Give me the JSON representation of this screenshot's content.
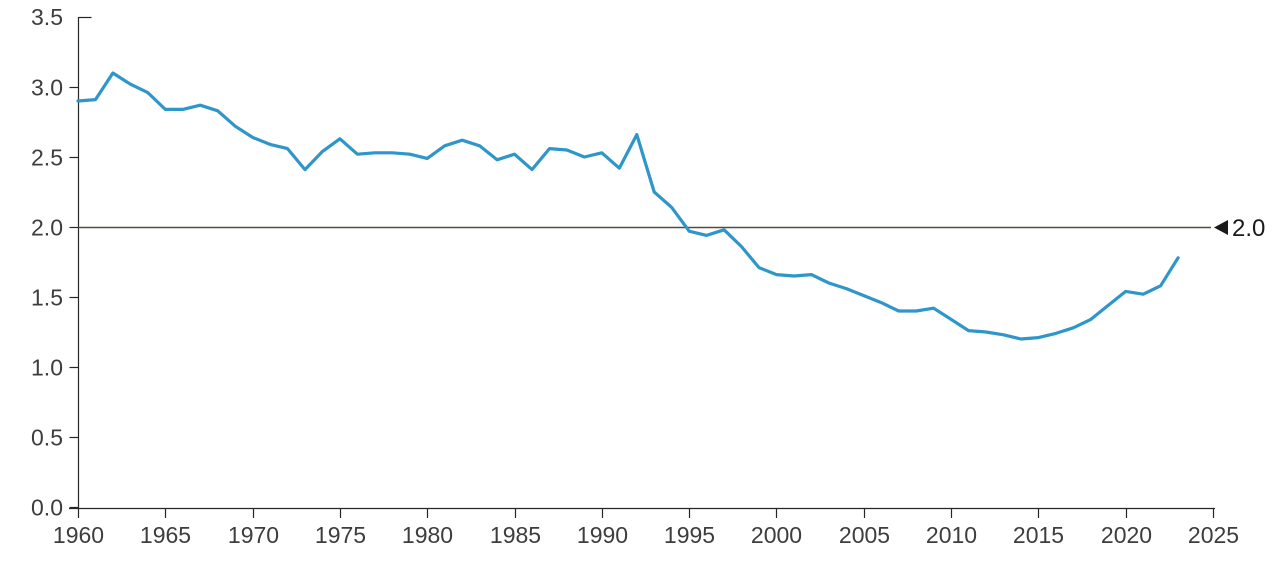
{
  "chart_data": {
    "type": "line",
    "title": "",
    "xlabel": "",
    "ylabel": "",
    "xlim": [
      1960,
      2025
    ],
    "ylim": [
      0.0,
      3.5
    ],
    "grid": "off",
    "legend": "none",
    "x_tick_labels": [
      "1960",
      "1965",
      "1970",
      "1975",
      "1980",
      "1985",
      "1990",
      "1995",
      "2000",
      "2005",
      "2010",
      "2015",
      "2020",
      "2025"
    ],
    "x_tick_values": [
      1960,
      1965,
      1970,
      1975,
      1980,
      1985,
      1990,
      1995,
      2000,
      2005,
      2010,
      2015,
      2020,
      2025
    ],
    "y_tick_labels": [
      "0.0",
      "0.5",
      "1.0",
      "1.5",
      "2.0",
      "2.5",
      "3.0",
      "3.5"
    ],
    "y_tick_values": [
      0.0,
      0.5,
      1.0,
      1.5,
      2.0,
      2.5,
      3.0,
      3.5
    ],
    "x": [
      1960,
      1961,
      1962,
      1963,
      1964,
      1965,
      1966,
      1967,
      1968,
      1969,
      1970,
      1971,
      1972,
      1973,
      1974,
      1975,
      1976,
      1977,
      1978,
      1979,
      1980,
      1981,
      1982,
      1983,
      1984,
      1985,
      1986,
      1987,
      1988,
      1989,
      1990,
      1991,
      1992,
      1993,
      1994,
      1995,
      1996,
      1997,
      1998,
      1999,
      2000,
      2001,
      2002,
      2003,
      2004,
      2005,
      2006,
      2007,
      2008,
      2009,
      2010,
      2011,
      2012,
      2013,
      2014,
      2015,
      2016,
      2017,
      2018,
      2019,
      2020,
      2021,
      2022,
      2023
    ],
    "values": [
      2.9,
      2.91,
      3.1,
      3.02,
      2.96,
      2.84,
      2.84,
      2.87,
      2.83,
      2.72,
      2.64,
      2.59,
      2.56,
      2.41,
      2.54,
      2.63,
      2.52,
      2.53,
      2.53,
      2.52,
      2.49,
      2.58,
      2.62,
      2.58,
      2.48,
      2.52,
      2.41,
      2.56,
      2.55,
      2.5,
      2.53,
      2.42,
      2.66,
      2.25,
      2.14,
      1.97,
      1.94,
      1.98,
      1.86,
      1.71,
      1.66,
      1.65,
      1.66,
      1.6,
      1.56,
      1.51,
      1.46,
      1.4,
      1.4,
      1.42,
      1.34,
      1.26,
      1.25,
      1.23,
      1.2,
      1.21,
      1.24,
      1.28,
      1.34,
      1.44,
      1.54,
      1.52,
      1.58,
      1.78
    ],
    "reference_line": {
      "value": 2.0,
      "label": "2.0",
      "marker": "left-triangle"
    },
    "colors": {
      "series": "#2e96c8",
      "reference_line": "#564c3e",
      "axis": "#262626",
      "tick_text": "#3d3d3d",
      "annotation_text": "#1a1a1a",
      "background": "#ffffff"
    }
  }
}
